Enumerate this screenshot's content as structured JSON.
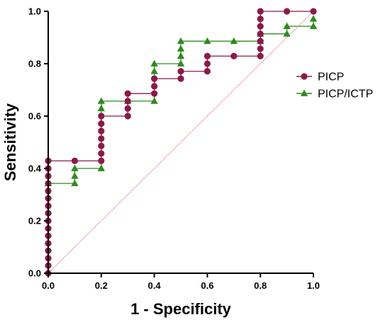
{
  "chart_data": {
    "type": "line",
    "title": "",
    "xlabel": "1 - Specificity",
    "ylabel": "Sensitivity",
    "xlim": [
      0,
      1
    ],
    "ylim": [
      0,
      1
    ],
    "x_ticks": [
      "0.0",
      "0.2",
      "0.4",
      "0.6",
      "0.8",
      "1.0"
    ],
    "y_ticks": [
      "0.0",
      "0.2",
      "0.4",
      "0.6",
      "0.8",
      "1.0"
    ],
    "grid": false,
    "legend_position": "right",
    "reference_line": {
      "points": [
        [
          0,
          0
        ],
        [
          1,
          1
        ]
      ],
      "color": "#e06060",
      "style": "dotted"
    },
    "series": [
      {
        "name": "PICP",
        "color": "#8b1a4a",
        "marker": "circle",
        "points": [
          [
            0,
            0
          ],
          [
            0,
            0.029
          ],
          [
            0,
            0.057
          ],
          [
            0,
            0.086
          ],
          [
            0,
            0.114
          ],
          [
            0,
            0.143
          ],
          [
            0,
            0.171
          ],
          [
            0,
            0.2
          ],
          [
            0,
            0.229
          ],
          [
            0,
            0.257
          ],
          [
            0,
            0.286
          ],
          [
            0,
            0.314
          ],
          [
            0,
            0.343
          ],
          [
            0,
            0.371
          ],
          [
            0,
            0.4
          ],
          [
            0,
            0.429
          ],
          [
            0.1,
            0.429
          ],
          [
            0.2,
            0.429
          ],
          [
            0.2,
            0.457
          ],
          [
            0.2,
            0.486
          ],
          [
            0.2,
            0.514
          ],
          [
            0.2,
            0.543
          ],
          [
            0.2,
            0.571
          ],
          [
            0.2,
            0.6
          ],
          [
            0.3,
            0.6
          ],
          [
            0.3,
            0.629
          ],
          [
            0.3,
            0.657
          ],
          [
            0.3,
            0.686
          ],
          [
            0.4,
            0.686
          ],
          [
            0.4,
            0.714
          ],
          [
            0.4,
            0.743
          ],
          [
            0.5,
            0.743
          ],
          [
            0.5,
            0.771
          ],
          [
            0.6,
            0.771
          ],
          [
            0.6,
            0.8
          ],
          [
            0.6,
            0.829
          ],
          [
            0.7,
            0.829
          ],
          [
            0.8,
            0.829
          ],
          [
            0.8,
            0.857
          ],
          [
            0.8,
            0.886
          ],
          [
            0.8,
            0.914
          ],
          [
            0.8,
            0.943
          ],
          [
            0.8,
            0.971
          ],
          [
            0.8,
            1.0
          ],
          [
            0.9,
            1.0
          ],
          [
            1.0,
            1.0
          ]
        ]
      },
      {
        "name": "PICP/ICTP",
        "color": "#2e8b1e",
        "marker": "triangle",
        "points": [
          [
            0,
            0.343
          ],
          [
            0.1,
            0.343
          ],
          [
            0.1,
            0.371
          ],
          [
            0.1,
            0.4
          ],
          [
            0.2,
            0.4
          ],
          [
            0.2,
            0.629
          ],
          [
            0.2,
            0.657
          ],
          [
            0.3,
            0.657
          ],
          [
            0.4,
            0.657
          ],
          [
            0.4,
            0.771
          ],
          [
            0.4,
            0.8
          ],
          [
            0.5,
            0.8
          ],
          [
            0.5,
            0.829
          ],
          [
            0.5,
            0.857
          ],
          [
            0.5,
            0.886
          ],
          [
            0.6,
            0.886
          ],
          [
            0.7,
            0.886
          ],
          [
            0.8,
            0.886
          ],
          [
            0.8,
            0.914
          ],
          [
            0.9,
            0.914
          ],
          [
            0.9,
            0.943
          ],
          [
            1.0,
            0.943
          ],
          [
            1.0,
            0.971
          ]
        ]
      }
    ]
  }
}
